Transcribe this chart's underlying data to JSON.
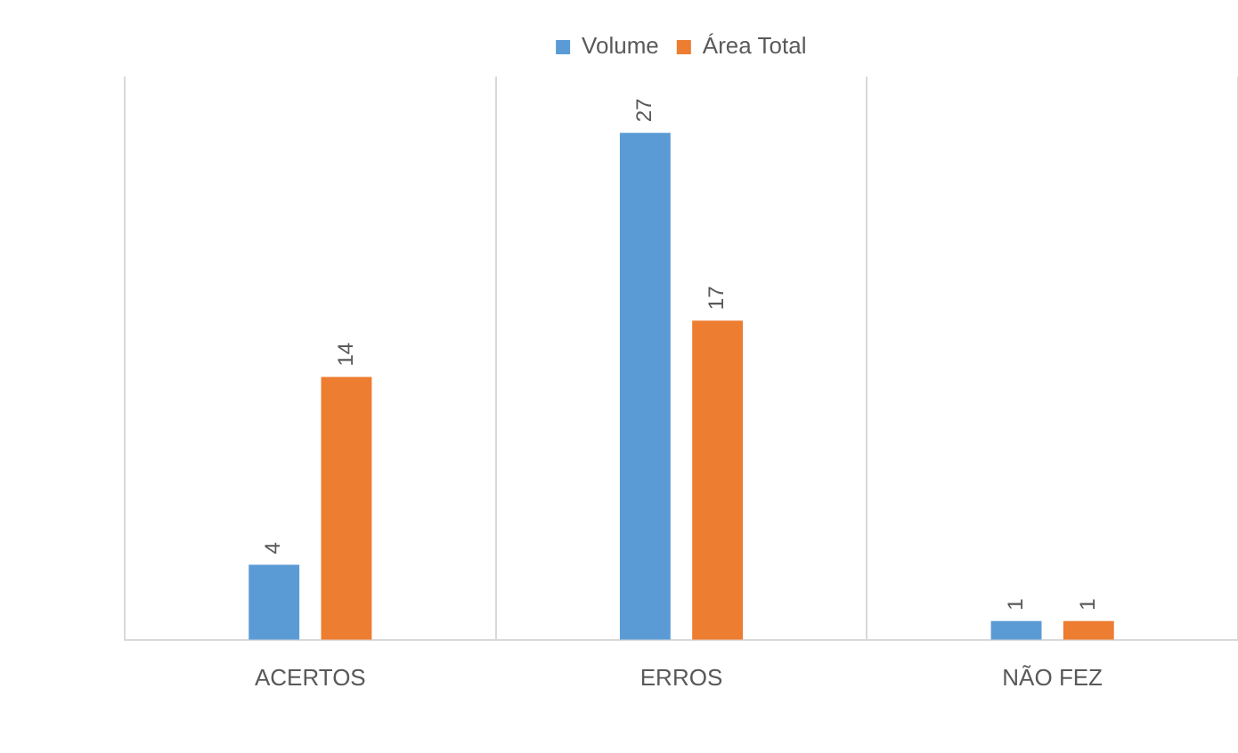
{
  "chart_data": {
    "type": "bar",
    "categories": [
      "ACERTOS",
      "ERROS",
      "NÃO FEZ"
    ],
    "series": [
      {
        "name": "Volume",
        "color": "#5b9bd5",
        "values": [
          4,
          27,
          1
        ]
      },
      {
        "name": "Área Total",
        "color": "#ed7d31",
        "values": [
          14,
          17,
          1
        ]
      }
    ],
    "data_labels": true,
    "legend": "top",
    "grid": "x"
  }
}
